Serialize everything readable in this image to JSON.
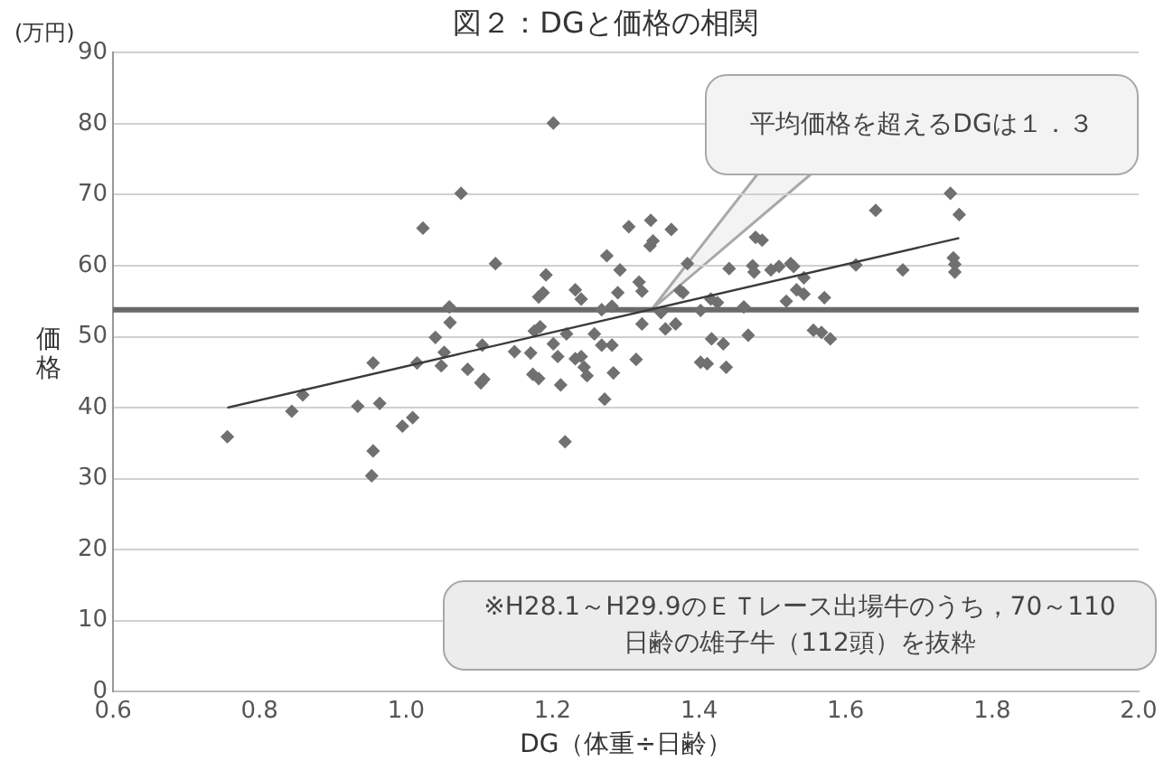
{
  "chart_data": {
    "type": "scatter",
    "title": "図２：DGと価格の相関",
    "xlabel": "DG（体重÷日齢）",
    "ylabel": "価格",
    "xlim": [
      0.6,
      2.0
    ],
    "xticks": [
      0.6,
      0.8,
      {
        "value": 1.0,
        "label": "1.0"
      },
      1.2,
      1.4,
      1.6,
      1.8,
      {
        "value": 2.0,
        "label": "2.0"
      }
    ],
    "ylim": [
      0,
      90
    ],
    "yticks": [
      0,
      10,
      20,
      30,
      40,
      50,
      60,
      70,
      80,
      90
    ],
    "grid": "y",
    "legend": false,
    "series": [
      {
        "type": "scatter",
        "color": "#707070",
        "marker": "diamond",
        "x": [
          1.075,
          1.023,
          1.059,
          1.06,
          1.04,
          1.052,
          1.048,
          1.015,
          0.955,
          0.859,
          0.844,
          0.756,
          0.934,
          0.964,
          0.995,
          1.009,
          0.955,
          0.953,
          1.122,
          1.191,
          1.181,
          1.187,
          1.104,
          1.084,
          1.106,
          1.102,
          1.148,
          1.17,
          1.173,
          1.181,
          1.175,
          1.183,
          1.201,
          1.207,
          1.211,
          1.217,
          1.219,
          1.231,
          1.239,
          1.231,
          1.239,
          1.243,
          1.247,
          1.257,
          1.267,
          1.281,
          1.271,
          1.283,
          1.267,
          1.274,
          1.281,
          1.289,
          1.292,
          1.304,
          1.314,
          1.318,
          1.322,
          1.322,
          1.334,
          1.333,
          1.337,
          1.348,
          1.354,
          1.362,
          1.368,
          1.374,
          1.384,
          1.378,
          1.402,
          1.402,
          1.411,
          1.417,
          1.433,
          1.416,
          1.425,
          1.437,
          1.441,
          1.461,
          1.467,
          1.477,
          1.486,
          1.473,
          1.475,
          1.498,
          1.509,
          1.525,
          1.529,
          1.543,
          1.533,
          1.543,
          1.519,
          1.571,
          1.556,
          1.567,
          1.579,
          1.614,
          1.641,
          1.678,
          1.743,
          1.755,
          1.747,
          1.749,
          1.749,
          1.201
        ],
        "values": [
          70.2,
          65.3,
          54.2,
          52.0,
          49.9,
          47.8,
          45.9,
          46.3,
          46.3,
          41.8,
          39.5,
          35.9,
          40.2,
          40.6,
          37.4,
          38.6,
          33.9,
          30.4,
          60.3,
          58.7,
          55.6,
          56.2,
          48.8,
          45.4,
          44.0,
          43.5,
          47.9,
          47.7,
          44.7,
          44.1,
          50.8,
          51.4,
          49.0,
          47.2,
          43.2,
          35.2,
          50.4,
          56.6,
          55.3,
          46.9,
          47.2,
          45.7,
          44.5,
          50.4,
          48.8,
          48.8,
          41.2,
          44.9,
          53.8,
          61.4,
          54.3,
          56.2,
          59.4,
          65.5,
          46.8,
          57.7,
          56.4,
          51.8,
          66.4,
          62.8,
          63.5,
          53.4,
          51.1,
          65.1,
          51.8,
          56.5,
          60.3,
          56.2,
          53.7,
          46.4,
          46.2,
          49.7,
          49.0,
          55.3,
          54.8,
          45.7,
          59.6,
          54.2,
          50.2,
          64.0,
          63.6,
          60.0,
          59.1,
          59.4,
          59.9,
          60.3,
          59.9,
          58.3,
          56.6,
          56.0,
          55.0,
          55.5,
          50.9,
          50.6,
          49.7,
          60.1,
          67.8,
          59.4,
          70.2,
          67.2,
          61.1,
          60.2,
          59.1,
          80.1
        ]
      },
      {
        "type": "line",
        "color": "#3a3a3a",
        "marker": "none",
        "x": [
          0.756,
          1.755
        ],
        "values": [
          40.0,
          63.9
        ]
      }
    ],
    "ref_lines": [
      {
        "axis": "y",
        "value": 53.8,
        "color": "#6a6a6a"
      }
    ],
    "annotations": [
      "(万円)",
      "平均価格を超えるDGは１．３",
      "※H28.1～H29.9のＥＴレース出場牛のうち，70～110日齢の雄子牛（112頭）を抜粋"
    ]
  }
}
